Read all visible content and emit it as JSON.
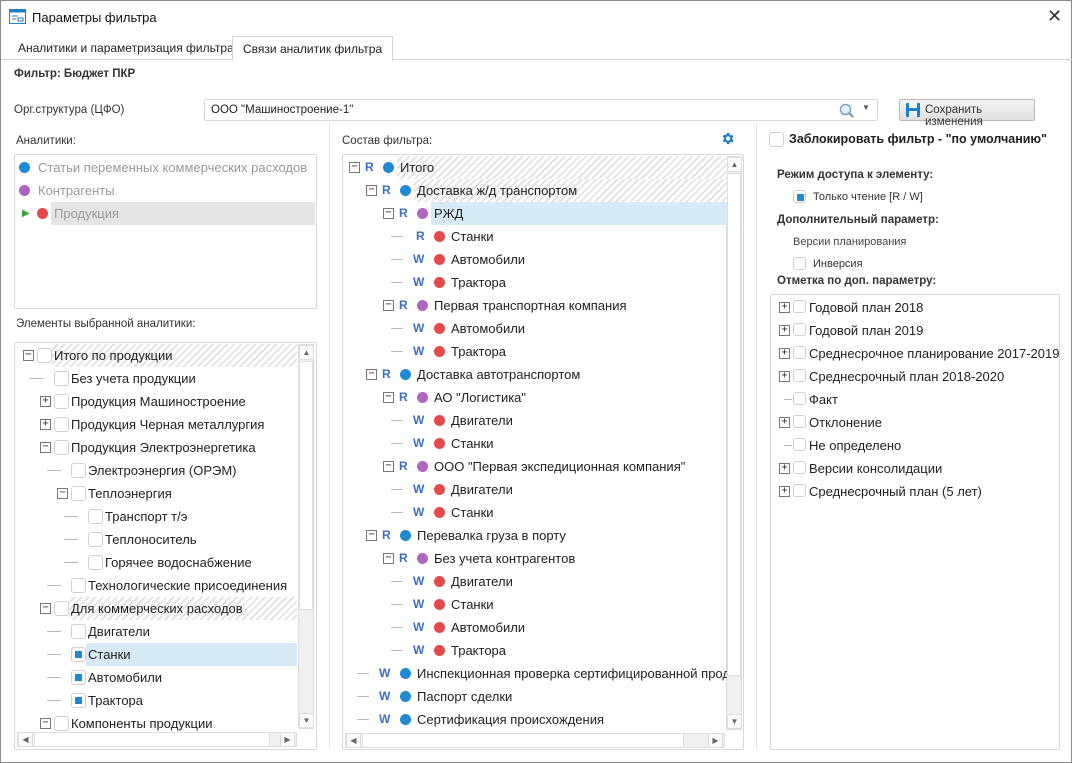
{
  "window": {
    "title": "Параметры фильтра",
    "close": "✕"
  },
  "tabs": [
    {
      "label": "Аналитики и параметризация фильтра",
      "active": false
    },
    {
      "label": "Связи аналитик фильтра",
      "active": true
    }
  ],
  "filter_name": "Фильтр: Бюджет ПКР",
  "org": {
    "label": "Орг.структура (ЦФО)",
    "value": "ООО \"Машиностроение-1\""
  },
  "save_button": "Сохранить изменения",
  "colors": {
    "blue": "#1f8ad4",
    "purple": "#b065c0",
    "red": "#e34a4a",
    "access": "#3d6fc0",
    "selection": "#d6eaf7"
  },
  "analytics": {
    "label": "Аналитики:",
    "items": [
      {
        "label": "Статьи переменных коммерческих расходов",
        "color": "blue"
      },
      {
        "label": "Контрагенты",
        "color": "purple"
      },
      {
        "label": "Продукция",
        "color": "red",
        "current": true
      }
    ]
  },
  "elements": {
    "label": "Элементы выбранной аналитики:",
    "items": [
      {
        "label": "Итого по продукции",
        "level": 0,
        "exp": "-",
        "checked": false,
        "style": "hatch"
      },
      {
        "label": "Без учета продукции",
        "level": 1,
        "checked": false
      },
      {
        "label": "Продукция Машиностроение",
        "level": 1,
        "exp": "+",
        "checked": false
      },
      {
        "label": "Продукция Черная металлургия",
        "level": 1,
        "exp": "+",
        "checked": false
      },
      {
        "label": "Продукция Электроэнергетика",
        "level": 1,
        "exp": "-",
        "checked": false
      },
      {
        "label": "Электроэнергия (ОРЭМ)",
        "level": 2,
        "checked": false
      },
      {
        "label": "Теплоэнергия",
        "level": 2,
        "exp": "-",
        "checked": false
      },
      {
        "label": "Транспорт т/э",
        "level": 3,
        "checked": false
      },
      {
        "label": "Теплоноситель",
        "level": 3,
        "checked": false
      },
      {
        "label": "Горячее водоснабжение",
        "level": 3,
        "checked": false
      },
      {
        "label": "Технологические присоединения",
        "level": 2,
        "checked": false
      },
      {
        "label": "Для коммерческих расходов",
        "level": 1,
        "exp": "-",
        "checked": false,
        "style": "hatch"
      },
      {
        "label": "Двигатели",
        "level": 2,
        "checked": false
      },
      {
        "label": "Станки",
        "level": 2,
        "checked": true,
        "style": "sel"
      },
      {
        "label": "Автомобили",
        "level": 2,
        "checked": true
      },
      {
        "label": "Трактора",
        "level": 2,
        "checked": true
      },
      {
        "label": "Компоненты продукции",
        "level": 1,
        "exp": "-",
        "checked": false
      }
    ]
  },
  "composition": {
    "label": "Состав фильтра:",
    "settings_icon": "gear-icon",
    "items": [
      {
        "label": "Итого",
        "level": 0,
        "exp": "-",
        "access": "R",
        "color": "blue",
        "style": "hatch"
      },
      {
        "label": "Доставка ж/д транспортом",
        "level": 1,
        "exp": "-",
        "access": "R",
        "color": "blue",
        "style": "hatch"
      },
      {
        "label": "РЖД",
        "level": 2,
        "exp": "-",
        "access": "R",
        "color": "purple",
        "style": "sel"
      },
      {
        "label": "Станки",
        "level": 3,
        "access": "R",
        "color": "red"
      },
      {
        "label": "Автомобили",
        "level": 3,
        "access": "W",
        "color": "red"
      },
      {
        "label": "Трактора",
        "level": 3,
        "access": "W",
        "color": "red"
      },
      {
        "label": "Первая транспортная компания",
        "level": 2,
        "exp": "-",
        "access": "R",
        "color": "purple"
      },
      {
        "label": "Автомобили",
        "level": 3,
        "access": "W",
        "color": "red"
      },
      {
        "label": "Трактора",
        "level": 3,
        "access": "W",
        "color": "red"
      },
      {
        "label": "Доставка автотранспортом",
        "level": 1,
        "exp": "-",
        "access": "R",
        "color": "blue"
      },
      {
        "label": "АО \"Логистика\"",
        "level": 2,
        "exp": "-",
        "access": "R",
        "color": "purple"
      },
      {
        "label": "Двигатели",
        "level": 3,
        "access": "W",
        "color": "red"
      },
      {
        "label": "Станки",
        "level": 3,
        "access": "W",
        "color": "red"
      },
      {
        "label": "ООО \"Первая экспедиционная компания\"",
        "level": 2,
        "exp": "-",
        "access": "R",
        "color": "purple"
      },
      {
        "label": "Двигатели",
        "level": 3,
        "access": "W",
        "color": "red"
      },
      {
        "label": "Станки",
        "level": 3,
        "access": "W",
        "color": "red"
      },
      {
        "label": "Перевалка груза в порту",
        "level": 1,
        "exp": "-",
        "access": "R",
        "color": "blue"
      },
      {
        "label": "Без учета контрагентов",
        "level": 2,
        "exp": "-",
        "access": "R",
        "color": "purple"
      },
      {
        "label": "Двигатели",
        "level": 3,
        "access": "W",
        "color": "red"
      },
      {
        "label": "Станки",
        "level": 3,
        "access": "W",
        "color": "red"
      },
      {
        "label": "Автомобили",
        "level": 3,
        "access": "W",
        "color": "red"
      },
      {
        "label": "Трактора",
        "level": 3,
        "access": "W",
        "color": "red"
      },
      {
        "label": "Инспекционная проверка сертифицированной проду",
        "level": 1,
        "access": "W",
        "color": "blue"
      },
      {
        "label": "Паспорт сделки",
        "level": 1,
        "access": "W",
        "color": "blue"
      },
      {
        "label": "Сертификация происхождения",
        "level": 1,
        "access": "W",
        "color": "blue"
      }
    ]
  },
  "right": {
    "lock_label": "Заблокировать фильтр - \"по умолчанию\"",
    "lock_checked": false,
    "access_mode_label": "Режим доступа к элементу:",
    "readonly_label": "Только чтение [R / W]",
    "readonly_checked": true,
    "extra_param_label": "Дополнительный параметр:",
    "extra_param_value": "Версии планирования",
    "inversion_label": "Инверсия",
    "inversion_checked": false,
    "mark_label": "Отметка по доп. параметру:",
    "items": [
      {
        "label": "Годовой план 2018",
        "exp": "+",
        "checked": false
      },
      {
        "label": "Годовой план 2019",
        "exp": "+",
        "checked": false
      },
      {
        "label": "Среднесрочное планирование 2017-2019",
        "exp": "+",
        "checked": false
      },
      {
        "label": "Среднесрочный план 2018-2020",
        "exp": "+",
        "checked": false
      },
      {
        "label": "Факт",
        "checked": false
      },
      {
        "label": "Отклонение",
        "exp": "+",
        "checked": false
      },
      {
        "label": "Не определено",
        "checked": false
      },
      {
        "label": "Версии консолидации",
        "exp": "+",
        "checked": false
      },
      {
        "label": "Среднесрочный план (5 лет)",
        "exp": "+",
        "checked": false
      }
    ]
  }
}
